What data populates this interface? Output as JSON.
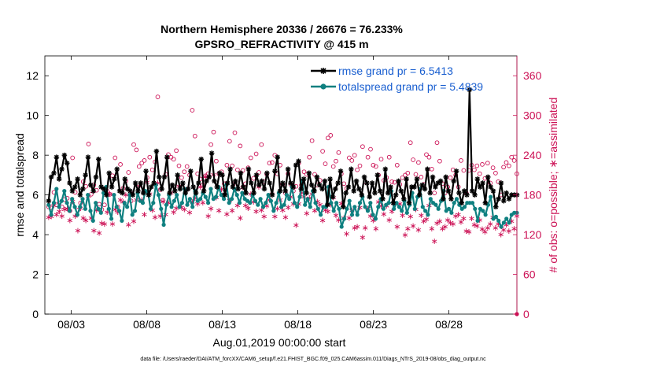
{
  "chart_data": {
    "type": "line",
    "title": "Northern Hemisphere 20336 / 26676 = 76.233%",
    "subtitle": "GPSRO_REFRACTIVITY @ 415 m",
    "xlabel": "Aug.01,2019 00:00:00 start",
    "ylabel_left": "rmse and totalspread",
    "ylabel_right": "# of obs: o=possible; ∗=assimilated",
    "ylim_left": [
      0,
      13
    ],
    "ylim_right": [
      0,
      390
    ],
    "xlim_days": [
      0.75,
      32.0
    ],
    "x_ticks": [
      {
        "day": 2.5,
        "label": "08/03"
      },
      {
        "day": 7.5,
        "label": "08/08"
      },
      {
        "day": 12.5,
        "label": "08/13"
      },
      {
        "day": 17.5,
        "label": "08/18"
      },
      {
        "day": 22.5,
        "label": "08/23"
      },
      {
        "day": 27.5,
        "label": "08/28"
      }
    ],
    "y_ticks_left": [
      0,
      2,
      4,
      6,
      8,
      10,
      12
    ],
    "y_ticks_right": [
      0,
      60,
      120,
      180,
      240,
      300,
      360
    ],
    "legend": {
      "rmse": "rmse grand pr = 6.5413",
      "spread": "totalspread grand pr = 5.4839"
    },
    "colors": {
      "rmse": "#000000",
      "spread": "#0f8080",
      "obs": "#cc1155",
      "legend_text": "#1a5fd0"
    },
    "series": [
      {
        "name": "rmse",
        "axis": "left",
        "values": [
          5.7,
          6.9,
          7.1,
          7.9,
          6.8,
          7.3,
          8.0,
          7.6,
          6.6,
          6.2,
          6.4,
          6.8,
          6.0,
          6.3,
          7.0,
          7.9,
          6.5,
          6.2,
          6.9,
          7.8,
          6.4,
          6.3,
          6.0,
          7.1,
          6.4,
          6.8,
          7.3,
          6.2,
          6.1,
          6.8,
          6.3,
          6.2,
          6.0,
          6.6,
          6.2,
          6.6,
          6.1,
          7.2,
          6.0,
          6.4,
          6.6,
          8.2,
          6.9,
          6.3,
          6.9,
          7.9,
          6.1,
          6.5,
          6.2,
          7.0,
          6.3,
          6.6,
          6.1,
          6.3,
          7.2,
          6.4,
          6.1,
          6.6,
          7.8,
          6.2,
          6.7,
          6.9,
          8.1,
          6.7,
          6.4,
          7.1,
          7.0,
          6.0,
          6.6,
          7.3,
          6.4,
          6.7,
          6.3,
          7.1,
          6.4,
          6.1,
          7.3,
          6.6,
          6.1,
          7.0,
          6.5,
          6.7,
          6.3,
          7.1,
          6.6,
          6.0,
          7.2,
          7.9,
          6.2,
          6.6,
          6.2,
          7.3,
          6.6,
          6.4,
          7.5,
          7.7,
          6.3,
          6.8,
          6.1,
          7.1,
          6.5,
          6.2,
          6.9,
          6.5,
          6.3,
          6.7,
          5.5,
          6.8,
          5.9,
          6.3,
          6.6,
          7.2,
          5.4,
          6.1,
          6.4,
          7.3,
          6.2,
          6.7,
          6.3,
          6.0,
          6.9,
          6.6,
          5.9,
          6.6,
          6.1,
          7.0,
          6.2,
          5.8,
          7.3,
          6.1,
          6.4,
          5.6,
          6.0,
          6.7,
          6.2,
          5.8,
          6.8,
          5.6,
          6.4,
          6.4,
          6.8,
          6.0,
          6.5,
          6.3,
          7.3,
          6.1,
          6.9,
          6.4,
          6.6,
          6.7,
          5.8,
          6.9,
          6.2,
          5.8,
          6.7,
          7.2,
          6.1,
          5.6,
          6.2,
          6.0,
          11.3,
          6.2,
          6.0,
          6.8,
          6.4,
          6.6,
          5.6,
          6.9,
          6.4,
          6.2,
          5.4,
          5.8,
          6.6,
          5.7,
          6.1,
          5.8,
          6.0,
          6.0,
          6.0
        ]
      },
      {
        "name": "totalspread",
        "axis": "left",
        "values": [
          5.5,
          5.0,
          5.6,
          6.3,
          5.4,
          5.7,
          6.2,
          5.6,
          5.2,
          5.8,
          5.4,
          5.0,
          5.4,
          5.8,
          5.3,
          6.0,
          5.2,
          4.7,
          5.6,
          5.3,
          5.1,
          6.1,
          6.4,
          5.3,
          4.8,
          6.0,
          5.4,
          5.2,
          4.7,
          5.6,
          5.4,
          6.0,
          5.0,
          5.2,
          6.1,
          5.7,
          5.6,
          6.2,
          6.1,
          5.3,
          5.6,
          6.5,
          6.0,
          5.3,
          4.5,
          5.5,
          6.0,
          5.4,
          5.7,
          6.0,
          5.4,
          5.6,
          6.3,
          5.5,
          5.8,
          5.4,
          6.2,
          5.7,
          5.8,
          6.1,
          5.9,
          5.6,
          6.3,
          5.8,
          5.9,
          6.4,
          6.0,
          5.8,
          6.5,
          5.6,
          5.8,
          6.3,
          6.0,
          5.6,
          6.1,
          5.8,
          5.7,
          5.6,
          6.0,
          5.7,
          5.5,
          5.8,
          5.4,
          5.6,
          6.0,
          5.7,
          5.2,
          5.6,
          6.1,
          5.4,
          5.5,
          6.0,
          5.8,
          6.4,
          5.6,
          5.4,
          5.9,
          6.7,
          5.5,
          5.8,
          5.4,
          6.2,
          5.6,
          5.3,
          5.0,
          5.4,
          5.4,
          6.4,
          5.6,
          5.2,
          5.6,
          5.3,
          4.4,
          4.8,
          5.3,
          5.7,
          5.0,
          5.4,
          5.0,
          5.6,
          5.9,
          5.4,
          5.2,
          5.6,
          5.0,
          4.8,
          5.4,
          5.8,
          5.3,
          5.5,
          5.6,
          6.2,
          5.3,
          5.6,
          5.4,
          5.2,
          5.7,
          5.1,
          5.5,
          6.1,
          5.3,
          5.9,
          6.3,
          5.4,
          5.2,
          5.0,
          5.8,
          5.6,
          5.5,
          5.3,
          5.7,
          6.2,
          5.2,
          5.3,
          5.1,
          5.6,
          5.8,
          5.5,
          5.3,
          5.4,
          5.6,
          5.6,
          5.6,
          5.3,
          4.7,
          5.3,
          5.2,
          5.0,
          5.5,
          5.9,
          4.8,
          4.9,
          4.7,
          4.4,
          4.6,
          4.8,
          4.6,
          5.0,
          5.1,
          5.1
        ]
      },
      {
        "name": "obs_possible",
        "axis": "right",
        "values": [
          162,
          161,
          184,
          165,
          168,
          162,
          173,
          175,
          156,
          236,
          184,
          157,
          168,
          200,
          193,
          257,
          181,
          195,
          187,
          166,
          158,
          165,
          186,
          181,
          209,
          236,
          162,
          226,
          190,
          201,
          214,
          171,
          256,
          248,
          223,
          228,
          232,
          206,
          237,
          218,
          230,
          328,
          188,
          172,
          211,
          241,
          237,
          234,
          247,
          224,
          206,
          215,
          223,
          210,
          308,
          269,
          212,
          204,
          195,
          209,
          212,
          256,
          275,
          231,
          212,
          215,
          197,
          225,
          261,
          224,
          274,
          218,
          254,
          217,
          197,
          221,
          236,
          205,
          242,
          214,
          256,
          200,
          211,
          228,
          229,
          240,
          212,
          225,
          196,
          183,
          212,
          196,
          186,
          193,
          228,
          195,
          215,
          211,
          237,
          262,
          211,
          195,
          202,
          246,
          227,
          266,
          270,
          223,
          231,
          244,
          212,
          197,
          190,
          236,
          232,
          240,
          218,
          224,
          253,
          200,
          237,
          249,
          225,
          223,
          210,
          234,
          202,
          206,
          237,
          200,
          199,
          225,
          196,
          206,
          210,
          213,
          259,
          233,
          211,
          229,
          207,
          196,
          241,
          237,
          219,
          183,
          259,
          231,
          197,
          183,
          192,
          206,
          218,
          210,
          192,
          232,
          217,
          183,
          217,
          225,
          218,
          224,
          212,
          226,
          205,
          228,
          198,
          221,
          213,
          200,
          180,
          222,
          229,
          224,
          237,
          232,
          212
        ]
      },
      {
        "name": "obs_assimilated",
        "axis": "right",
        "values": [
          148,
          149,
          166,
          152,
          157,
          150,
          160,
          161,
          143,
          172,
          150,
          128,
          162,
          147,
          143,
          180,
          147,
          128,
          159,
          124,
          139,
          138,
          156,
          183,
          138,
          160,
          156,
          174,
          171,
          182,
          137,
          185,
          142,
          174,
          195,
          174,
          152,
          201,
          183,
          159,
          148,
          200,
          150,
          172,
          152,
          170,
          185,
          156,
          162,
          195,
          163,
          160,
          190,
          155,
          171,
          177,
          168,
          194,
          170,
          209,
          150,
          161,
          212,
          178,
          158,
          190,
          183,
          153,
          173,
          158,
          200,
          166,
          147,
          193,
          166,
          162,
          183,
          171,
          157,
          194,
          159,
          149,
          165,
          174,
          183,
          149,
          161,
          174,
          159,
          148,
          163,
          179,
          168,
          136,
          168,
          185,
          179,
          154,
          177,
          183,
          158,
          172,
          167,
          143,
          159,
          157,
          167,
          178,
          151,
          144,
          169,
          147,
          123,
          147,
          158,
          132,
          134,
          163,
          118,
          132,
          161,
          150,
          143,
          131,
          171,
          165,
          153,
          165,
          144,
          157,
          169,
          134,
          168,
          151,
          121,
          131,
          149,
          135,
          160,
          129,
          151,
          142,
          145,
          166,
          131,
          112,
          139,
          142,
          131,
          134,
          144,
          140,
          138,
          150,
          152,
          141,
          146,
          127,
          126,
          146,
          137,
          135,
          144,
          130,
          126,
          132,
          138,
          148,
          132,
          138,
          122,
          129,
          137,
          127,
          142,
          131,
          150
        ]
      }
    ]
  },
  "footnote": "data file: /Users/raeder/DAI/ATM_forcXX/CAM6_setup/f.e21.FHIST_BGC.f09_025.CAM6assim.011/Diags_NTrS_2019-08/obs_diag_output.nc"
}
